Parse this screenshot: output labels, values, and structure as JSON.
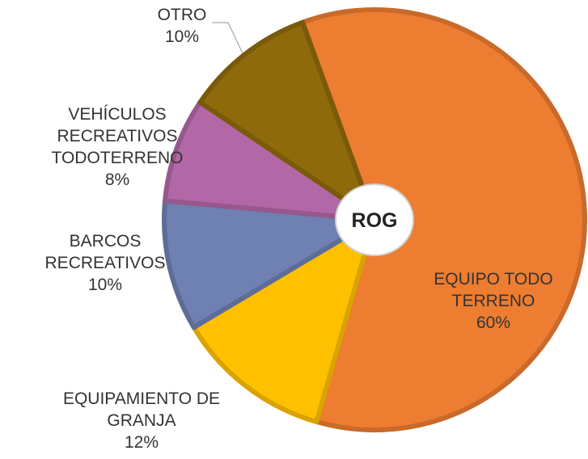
{
  "chart_data": {
    "type": "pie",
    "center_label": "ROG",
    "categories": [
      "EQUIPO TODO TERRENO",
      "EQUIPAMIENTO DE GRANJA",
      "BARCOS RECREATIVOS",
      "VEHÍCULOS RECREATIVOS TODOTERRENO",
      "OTRO"
    ],
    "values": [
      60,
      12,
      10,
      8,
      10
    ],
    "value_labels": [
      "60%",
      "12%",
      "10%",
      "8%",
      "10%"
    ],
    "colors": [
      "#ed7d31",
      "#ffc000",
      "#6f80b2",
      "#b268a6",
      "#8e6a0b"
    ]
  }
}
